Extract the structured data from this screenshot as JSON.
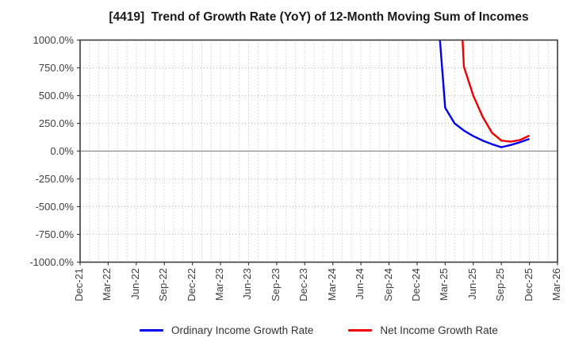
{
  "chart_data": {
    "type": "line",
    "title": "[4419]  Trend of Growth Rate (YoY) of 12-Month Moving Sum of Incomes",
    "ylabel": "",
    "xlabel": "",
    "ylim": [
      -1000,
      1000
    ],
    "y_tick_step_percent": 250,
    "y_tick_labels": [
      "1000.0%",
      "750.0%",
      "500.0%",
      "250.0%",
      "0.0%",
      "-250.0%",
      "-500.0%",
      "-750.0%",
      "-1000.0%"
    ],
    "x_start_month": "Dec-21",
    "x_end_month": "Mar-26",
    "x_tick_labels": [
      "Dec-21",
      "Mar-22",
      "Jun-22",
      "Sep-22",
      "Dec-22",
      "Mar-23",
      "Jun-23",
      "Sep-23",
      "Dec-23",
      "Mar-24",
      "Jun-24",
      "Sep-24",
      "Dec-24",
      "Mar-25",
      "Jun-25",
      "Sep-25",
      "Dec-25",
      "Mar-26"
    ],
    "grid": {
      "vertical": "monthly dotted",
      "horizontal": "every 250% dotted",
      "zero_line": "solid gray"
    },
    "legend_position": "bottom-center",
    "series": [
      {
        "name": "Ordinary Income Growth Rate",
        "color": "#0000ee",
        "points_percent_by_month": [
          [
            "Feb-25",
            1480
          ],
          [
            "Mar-25",
            390
          ],
          [
            "Apr-25",
            250
          ],
          [
            "May-25",
            185
          ],
          [
            "Jun-25",
            135
          ],
          [
            "Jul-25",
            95
          ],
          [
            "Aug-25",
            62
          ],
          [
            "Sep-25",
            35
          ],
          [
            "Oct-25",
            55
          ],
          [
            "Nov-25",
            80
          ],
          [
            "Dec-25",
            110
          ]
        ]
      },
      {
        "name": "Net Income Growth Rate",
        "color": "#ee0000",
        "points_percent_by_month": [
          [
            "Apr-25",
            2430
          ],
          [
            "May-25",
            760
          ],
          [
            "Jun-25",
            500
          ],
          [
            "Jul-25",
            310
          ],
          [
            "Aug-25",
            165
          ],
          [
            "Sep-25",
            95
          ],
          [
            "Oct-25",
            85
          ],
          [
            "Nov-25",
            100
          ],
          [
            "Dec-25",
            140
          ]
        ]
      }
    ]
  },
  "colors": {
    "background": "#ffffff",
    "title_text": "#1a1a1a",
    "tick_text": "#404040",
    "grid": "#b8b8b8",
    "zero_line": "#8c8c8c",
    "plot_border": "#3c3c3c"
  }
}
